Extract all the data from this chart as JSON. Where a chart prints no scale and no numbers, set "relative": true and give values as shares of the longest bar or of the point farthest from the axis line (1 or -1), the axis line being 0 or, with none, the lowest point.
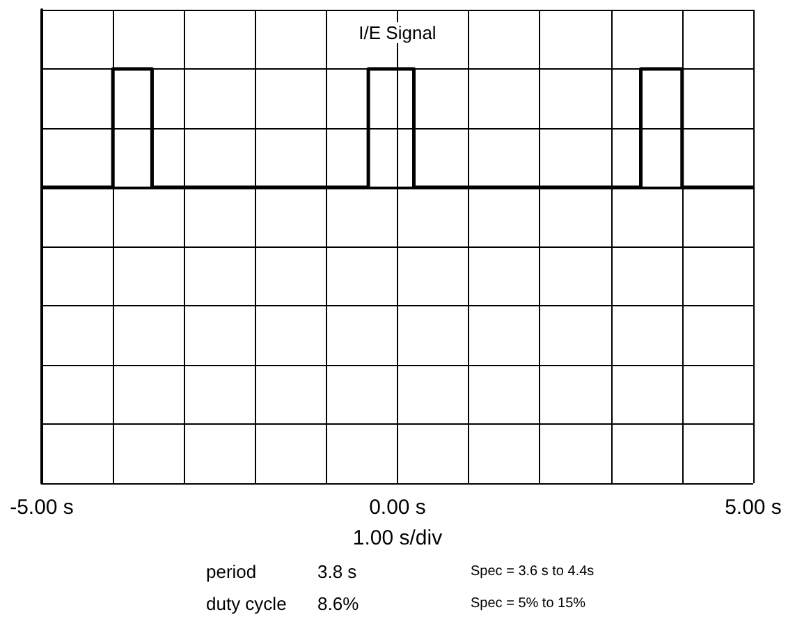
{
  "chart_data": {
    "type": "step",
    "title": "I/E Signal",
    "xlabel": "1.00 s/div",
    "x": [
      -5,
      -4,
      -3.45,
      -0.41,
      0.23,
      3.42,
      4,
      5
    ],
    "series": [
      {
        "color": "#000000",
        "values": [
          0,
          1,
          0,
          1,
          0,
          1,
          0,
          0
        ]
      }
    ],
    "relative": true,
    "xlim": [
      -5,
      5
    ],
    "xticks": [
      {
        "value": -5,
        "label": "-5.00 s"
      },
      {
        "value": -4,
        "label": null
      },
      {
        "value": -3,
        "label": null
      },
      {
        "value": -2,
        "label": null
      },
      {
        "value": -1,
        "label": null
      },
      {
        "value": 0,
        "label": "0.00 s"
      },
      {
        "value": 1,
        "label": null
      },
      {
        "value": 2,
        "label": null
      },
      {
        "value": 3,
        "label": null
      },
      {
        "value": 4,
        "label": null
      },
      {
        "value": 5,
        "label": "5.00 s"
      }
    ],
    "tick_labels": "x",
    "grid": true,
    "marker": "none",
    "line_style": "solid",
    "annotations": [
      "period",
      "3.8 s",
      "Spec = 3.6 s to 4.4s",
      "duty cycle",
      "8.6%",
      "Spec = 5% to 15%"
    ]
  }
}
